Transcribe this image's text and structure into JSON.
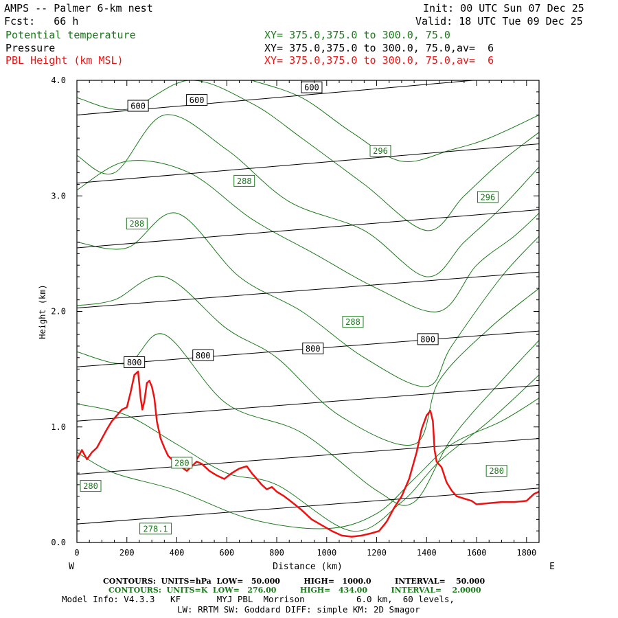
{
  "header": {
    "title": "AMPS -- Palmer 6-km nest",
    "fcst": "Fcst:   66 h",
    "init": "Init: 00 UTC Sun 07 Dec 25",
    "valid": "Valid: 18 UTC Tue 09 Dec 25"
  },
  "legend": {
    "theta_label": "Potential temperature",
    "pressure_label": "Pressure",
    "pbl_label": "PBL Height (km MSL)",
    "theta_xy": "XY= 375.0,375.0 to 300.0, 75.0",
    "pressure_xy": "XY= 375.0,375.0 to 300.0, 75.0,av=  6",
    "pbl_xy": "XY= 375.0,375.0 to 300.0, 75.0,av=  6"
  },
  "colors": {
    "theta": "#1a7a1a",
    "pressure": "#000000",
    "pbl": "#ee1111"
  },
  "footer": {
    "line1": "CONTOURS:  UNITS=hPa  LOW=   50.000         HIGH=   1000.0         INTERVAL=    50.000",
    "line2": "CONTOURS:  UNITS=K  LOW=   276.00         HIGH=   434.00         INTERVAL=    2.0000",
    "line3": "Model Info: V4.3.3   KF       MYJ PBL  Morrison          6.0 km,  60 levels,",
    "line4": "LW: RRTM SW: Goddard DIFF: simple KM: 2D Smagor"
  },
  "chart_data": {
    "type": "line",
    "title": "AMPS -- Palmer 6-km nest",
    "xlabel": "Distance (km)",
    "ylabel": "Height (km)",
    "xlim": [
      0,
      1850
    ],
    "ylim": [
      0,
      4
    ],
    "xticks": [
      0,
      200,
      400,
      600,
      800,
      1000,
      1200,
      1400,
      1600,
      1800
    ],
    "yticks": [
      "0.0",
      "1.0",
      "2.0",
      "3.0",
      "4.0"
    ],
    "left_end_label": "W",
    "right_end_label": "E",
    "pressure_contours": [
      {
        "x": [
          0,
          1850
        ],
        "y": [
          0.16,
          0.47
        ]
      },
      {
        "x": [
          0,
          1850
        ],
        "y": [
          0.59,
          0.9
        ]
      },
      {
        "x": [
          0,
          1850
        ],
        "y": [
          1.05,
          1.36
        ]
      },
      {
        "x": [
          0,
          1850
        ],
        "y": [
          1.52,
          1.83
        ]
      },
      {
        "x": [
          0,
          1850
        ],
        "y": [
          2.03,
          2.34
        ]
      },
      {
        "x": [
          0,
          1850
        ],
        "y": [
          2.55,
          2.88
        ]
      },
      {
        "x": [
          0,
          1850
        ],
        "y": [
          3.11,
          3.45
        ]
      },
      {
        "x": [
          0,
          1850
        ],
        "y": [
          3.7,
          4.05
        ]
      }
    ],
    "pressure_labels": [
      {
        "text": "800",
        "x": 230,
        "y": 1.56
      },
      {
        "text": "800",
        "x": 505,
        "y": 1.62
      },
      {
        "text": "800",
        "x": 945,
        "y": 1.68
      },
      {
        "text": "800",
        "x": 1405,
        "y": 1.76
      },
      {
        "text": "600",
        "x": 245,
        "y": 3.78
      },
      {
        "text": "600",
        "x": 480,
        "y": 3.83
      },
      {
        "text": "600",
        "x": 940,
        "y": 3.94
      }
    ],
    "theta_contours": [
      {
        "x": [
          0,
          150,
          400,
          700,
          1000,
          1200,
          1350,
          1500,
          1700,
          1850
        ],
        "y": [
          0.78,
          0.6,
          0.45,
          0.2,
          0.12,
          0.25,
          0.55,
          0.85,
          1.05,
          1.25
        ]
      },
      {
        "x": [
          0,
          200,
          400,
          600,
          800,
          1100,
          1300,
          1450,
          1650,
          1850
        ],
        "y": [
          1.2,
          1.1,
          0.85,
          0.6,
          0.5,
          0.1,
          0.35,
          0.7,
          1.05,
          1.45
        ]
      },
      {
        "x": [
          0,
          200,
          350,
          600,
          900,
          1200,
          1350,
          1500,
          1700,
          1850
        ],
        "y": [
          1.65,
          1.55,
          1.8,
          1.2,
          0.95,
          0.45,
          0.35,
          0.9,
          1.4,
          1.75
        ]
      },
      {
        "x": [
          0,
          150,
          350,
          600,
          800,
          1050,
          1350,
          1450,
          1650,
          1850
        ],
        "y": [
          2.05,
          2.1,
          2.3,
          1.85,
          1.6,
          1.1,
          0.85,
          1.4,
          1.85,
          2.2
        ]
      },
      {
        "x": [
          0,
          200,
          400,
          650,
          900,
          1150,
          1400,
          1500,
          1700,
          1850
        ],
        "y": [
          2.6,
          2.55,
          2.85,
          2.3,
          2.0,
          1.6,
          1.35,
          1.7,
          2.3,
          2.65
        ]
      },
      {
        "x": [
          0,
          200,
          450,
          700,
          950,
          1200,
          1450,
          1600,
          1750,
          1850
        ],
        "y": [
          3.05,
          3.3,
          3.2,
          2.8,
          2.5,
          2.2,
          2.0,
          2.4,
          2.65,
          2.85
        ]
      },
      {
        "x": [
          0,
          150,
          350,
          600,
          850,
          1150,
          1400,
          1550,
          1700,
          1850
        ],
        "y": [
          3.35,
          3.2,
          3.7,
          3.4,
          2.95,
          2.7,
          2.3,
          2.6,
          2.9,
          3.25
        ]
      },
      {
        "x": [
          0,
          200,
          450,
          700,
          900,
          1150,
          1400,
          1550,
          1700,
          1850
        ],
        "y": [
          3.85,
          3.75,
          4.0,
          3.8,
          3.5,
          3.1,
          2.7,
          3.0,
          3.3,
          3.55
        ]
      },
      {
        "x": [
          700,
          900,
          1100,
          1300,
          1500,
          1650,
          1850
        ],
        "y": [
          4.0,
          3.85,
          3.55,
          3.3,
          3.4,
          3.5,
          3.7
        ]
      }
    ],
    "theta_labels": [
      {
        "text": "280",
        "x": 55,
        "y": 0.49
      },
      {
        "text": "280",
        "x": 1680,
        "y": 0.62
      },
      {
        "text": "280",
        "x": 420,
        "y": 0.69
      },
      {
        "text": "278.1",
        "x": 315,
        "y": 0.12
      },
      {
        "text": "288",
        "x": 240,
        "y": 2.76
      },
      {
        "text": "288",
        "x": 670,
        "y": 3.13
      },
      {
        "text": "288",
        "x": 1105,
        "y": 1.91
      },
      {
        "text": "296",
        "x": 1215,
        "y": 3.39
      },
      {
        "text": "296",
        "x": 1645,
        "y": 2.99
      }
    ],
    "series": [
      {
        "name": "PBL Height (km MSL)",
        "x": [
          0,
          20,
          40,
          60,
          80,
          100,
          120,
          140,
          160,
          180,
          200,
          215,
          230,
          245,
          255,
          262,
          270,
          280,
          290,
          300,
          310,
          320,
          335,
          350,
          365,
          380,
          400,
          420,
          440,
          460,
          480,
          500,
          530,
          560,
          590,
          620,
          650,
          680,
          700,
          720,
          740,
          760,
          780,
          800,
          830,
          860,
          900,
          940,
          980,
          1020,
          1060,
          1100,
          1140,
          1180,
          1210,
          1240,
          1270,
          1300,
          1330,
          1360,
          1380,
          1400,
          1415,
          1425,
          1432,
          1440,
          1460,
          1480,
          1500,
          1520,
          1550,
          1580,
          1600,
          1650,
          1700,
          1750,
          1800,
          1830,
          1850
        ],
        "y": [
          0.72,
          0.8,
          0.72,
          0.78,
          0.82,
          0.9,
          0.98,
          1.05,
          1.1,
          1.15,
          1.17,
          1.3,
          1.45,
          1.48,
          1.25,
          1.15,
          1.22,
          1.38,
          1.4,
          1.35,
          1.25,
          1.05,
          0.9,
          0.82,
          0.75,
          0.72,
          0.68,
          0.65,
          0.62,
          0.66,
          0.7,
          0.68,
          0.62,
          0.58,
          0.55,
          0.6,
          0.64,
          0.66,
          0.6,
          0.55,
          0.5,
          0.46,
          0.48,
          0.44,
          0.4,
          0.35,
          0.28,
          0.2,
          0.15,
          0.1,
          0.06,
          0.05,
          0.06,
          0.08,
          0.1,
          0.18,
          0.3,
          0.4,
          0.55,
          0.78,
          0.98,
          1.1,
          1.14,
          1.05,
          0.8,
          0.7,
          0.65,
          0.52,
          0.45,
          0.4,
          0.38,
          0.36,
          0.33,
          0.34,
          0.35,
          0.35,
          0.36,
          0.42,
          0.44
        ]
      }
    ]
  }
}
